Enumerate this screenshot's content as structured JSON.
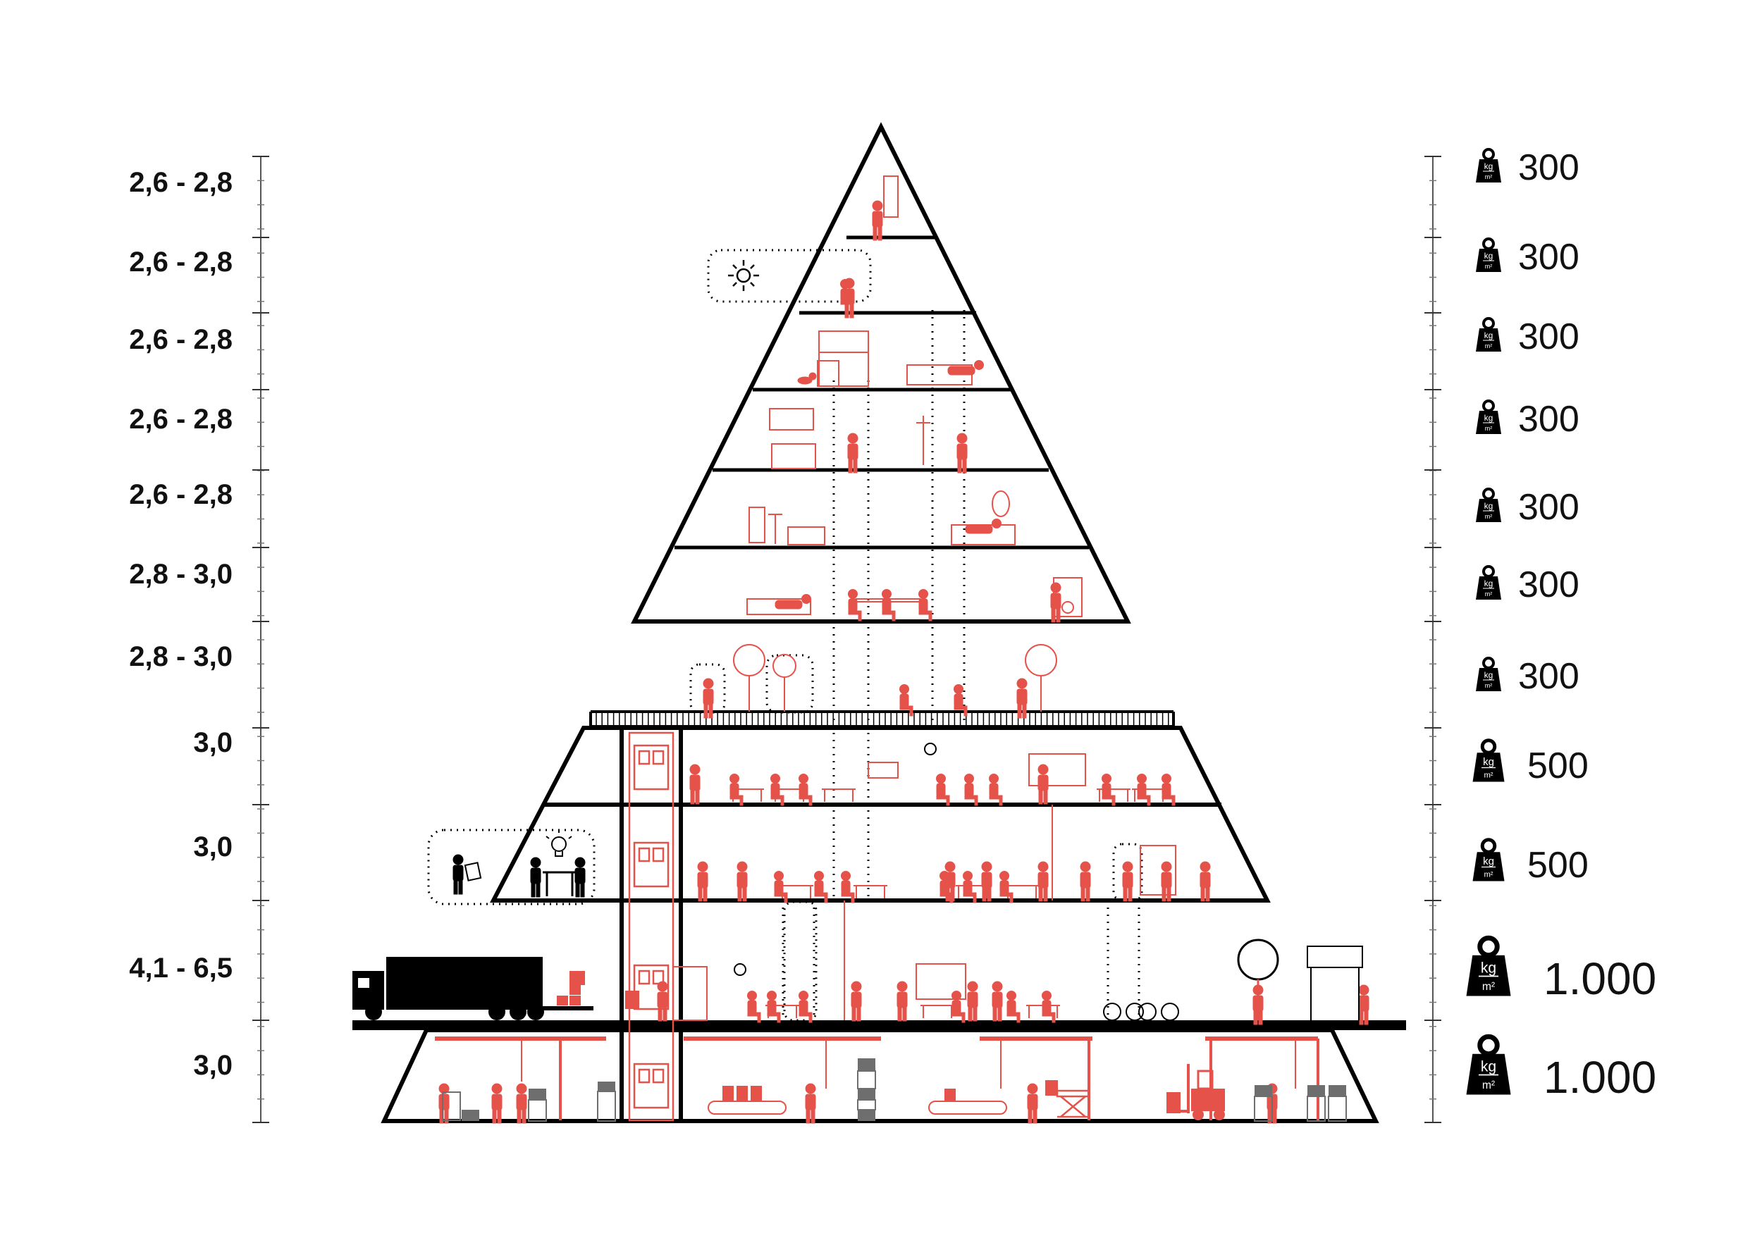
{
  "floors": [
    {
      "height": "2,6 - 2,8",
      "load": "300",
      "weight_size": "small"
    },
    {
      "height": "2,6 - 2,8",
      "load": "300",
      "weight_size": "small"
    },
    {
      "height": "2,6 - 2,8",
      "load": "300",
      "weight_size": "small"
    },
    {
      "height": "2,6 - 2,8",
      "load": "300",
      "weight_size": "small"
    },
    {
      "height": "2,6 - 2,8",
      "load": "300",
      "weight_size": "small"
    },
    {
      "height": "2,8 - 3,0",
      "load": "300",
      "weight_size": "small"
    },
    {
      "height": "2,8 - 3,0",
      "load": "300",
      "weight_size": "small"
    },
    {
      "height": "3,0",
      "load": "500",
      "weight_size": "medium"
    },
    {
      "height": "3,0",
      "load": "500",
      "weight_size": "medium"
    },
    {
      "height": "4,1 - 6,5",
      "load": "1.000",
      "weight_size": "large"
    },
    {
      "height": "3,0",
      "load": "1.000",
      "weight_size": "large"
    }
  ],
  "weight_unit": {
    "numerator": "kg",
    "denominator": "m²"
  },
  "colors": {
    "structure": "#000000",
    "accent": "#e5524a",
    "accent_light": "#f2a29c",
    "storage_gray": "#6e6e6e",
    "text": "#111111"
  },
  "icons": {
    "weight": "weight-icon",
    "sun": "sun-icon",
    "truck": "truck-icon",
    "tree": "tree-icon",
    "bulb": "lightbulb-icon",
    "forklift": "forklift-icon",
    "person": "person-icon"
  }
}
